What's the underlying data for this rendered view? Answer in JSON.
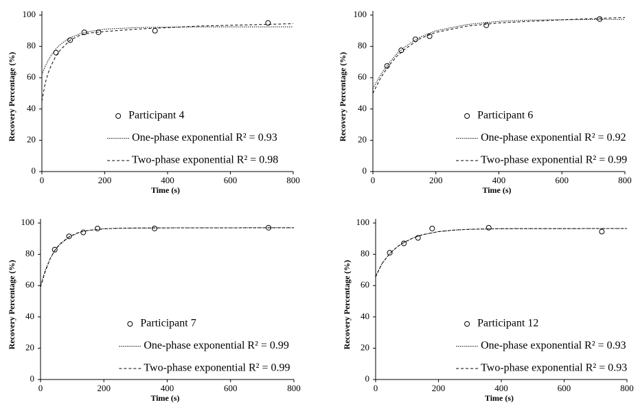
{
  "chart_data": [
    {
      "type": "line",
      "xlabel": "Time (s)",
      "ylabel": "Recovery Percentage (%)",
      "xlim": [
        0,
        800
      ],
      "ylim": [
        0,
        100
      ],
      "xticks": [
        0,
        200,
        400,
        600,
        800
      ],
      "yticks": [
        0,
        20,
        40,
        60,
        80,
        100
      ],
      "legend": "lower center",
      "series": [
        {
          "name": "Participant 4",
          "marker": "circle",
          "color": "#000000",
          "x": [
            45,
            90,
            135,
            180,
            360,
            720
          ],
          "values": [
            76,
            84,
            89,
            89,
            90,
            95
          ]
        },
        {
          "name": "One-phase exponential R² = 0.93",
          "dash": "dotted",
          "color": "#000000",
          "x": [
            0,
            10,
            20,
            30,
            45,
            60,
            90,
            120,
            150,
            200,
            300,
            400,
            500,
            600,
            700,
            800
          ],
          "values": [
            62,
            67,
            71,
            74.5,
            78.5,
            81.5,
            85.5,
            88,
            89.5,
            91,
            92,
            92.3,
            92.5,
            92.5,
            92.5,
            92.5
          ]
        },
        {
          "name": "Two-phase exponential R² = 0.98",
          "dash": "dashed",
          "color": "#000000",
          "x": [
            0,
            10,
            20,
            30,
            45,
            60,
            90,
            120,
            150,
            200,
            300,
            400,
            500,
            600,
            700,
            800
          ],
          "values": [
            45,
            56,
            63,
            68,
            74,
            78,
            84,
            87,
            88.5,
            89.5,
            91,
            92,
            93,
            93.5,
            94,
            94.5
          ]
        }
      ]
    },
    {
      "type": "line",
      "xlabel": "Time (s)",
      "ylabel": "Recovery Percentage (%)",
      "xlim": [
        0,
        800
      ],
      "ylim": [
        0,
        100
      ],
      "xticks": [
        0,
        200,
        400,
        600,
        800
      ],
      "yticks": [
        0,
        20,
        40,
        60,
        80,
        100
      ],
      "legend": "lower center",
      "series": [
        {
          "name": "Participant 6",
          "marker": "circle",
          "color": "#000000",
          "x": [
            45,
            90,
            135,
            180,
            360,
            720
          ],
          "values": [
            67.5,
            77.5,
            84.5,
            86.5,
            93.5,
            97.5
          ]
        },
        {
          "name": "One-phase exponential R² = 0.92",
          "dash": "dotted",
          "color": "#000000",
          "x": [
            0,
            25,
            50,
            75,
            100,
            150,
            200,
            300,
            400,
            500,
            600,
            700,
            800
          ],
          "values": [
            53,
            62,
            69,
            75,
            79.5,
            86,
            90,
            94,
            96,
            96.8,
            97,
            97.2,
            97.3
          ]
        },
        {
          "name": "Two-phase exponential R² = 0.99",
          "dash": "dashed",
          "color": "#000000",
          "x": [
            0,
            25,
            50,
            75,
            100,
            150,
            200,
            300,
            400,
            500,
            600,
            700,
            800
          ],
          "values": [
            50,
            60,
            67.5,
            73.5,
            78,
            85,
            89,
            93,
            95,
            96,
            97,
            97.8,
            98.5
          ]
        }
      ]
    },
    {
      "type": "line",
      "xlabel": "Time (s)",
      "ylabel": "Recovery Percentage (%)",
      "xlim": [
        0,
        800
      ],
      "ylim": [
        0,
        100
      ],
      "xticks": [
        0,
        200,
        400,
        600,
        800
      ],
      "yticks": [
        0,
        20,
        40,
        60,
        80,
        100
      ],
      "legend": "lower center",
      "series": [
        {
          "name": "Participant 7",
          "marker": "circle",
          "color": "#000000",
          "x": [
            45,
            90,
            135,
            180,
            360,
            720
          ],
          "values": [
            83,
            91.5,
            94,
            96.5,
            96.5,
            97
          ]
        },
        {
          "name": "One-phase exponential R² = 0.99",
          "dash": "dotted",
          "color": "#000000",
          "x": [
            0,
            15,
            30,
            45,
            60,
            90,
            120,
            150,
            200,
            250,
            300,
            400,
            800
          ],
          "values": [
            60,
            70,
            77,
            82.5,
            86,
            91,
            93.8,
            95.2,
            96.3,
            96.7,
            96.8,
            96.9,
            97
          ]
        },
        {
          "name": "Two-phase exponential R² = 0.99",
          "dash": "dashed",
          "color": "#000000",
          "x": [
            0,
            15,
            30,
            45,
            60,
            90,
            120,
            150,
            200,
            250,
            300,
            400,
            800
          ],
          "values": [
            59,
            69,
            77,
            82.5,
            86.5,
            91.2,
            94,
            95.3,
            96.3,
            96.7,
            96.8,
            96.9,
            97
          ]
        }
      ]
    },
    {
      "type": "line",
      "xlabel": "Time (s)",
      "ylabel": "Recovery Percentage (%)",
      "xlim": [
        0,
        800
      ],
      "ylim": [
        0,
        100
      ],
      "xticks": [
        0,
        200,
        400,
        600,
        800
      ],
      "yticks": [
        0,
        20,
        40,
        60,
        80,
        100
      ],
      "legend": "lower center",
      "series": [
        {
          "name": "Participant 12",
          "marker": "circle",
          "color": "#000000",
          "x": [
            45,
            90,
            135,
            180,
            360,
            720
          ],
          "values": [
            81,
            87,
            90.5,
            96.5,
            97,
            94.5
          ]
        },
        {
          "name": "One-phase exponential R² = 0.93",
          "dash": "dotted",
          "color": "#000000",
          "x": [
            0,
            20,
            45,
            70,
            90,
            120,
            150,
            200,
            250,
            300,
            400,
            800
          ],
          "values": [
            66,
            74,
            80.5,
            85,
            87.5,
            90.5,
            92.5,
            94.5,
            95.5,
            96,
            96.4,
            96.5
          ]
        },
        {
          "name": "Two-phase exponential R² = 0.93",
          "dash": "dashed",
          "color": "#000000",
          "x": [
            0,
            20,
            45,
            70,
            90,
            120,
            150,
            200,
            250,
            300,
            400,
            800
          ],
          "values": [
            65.5,
            74,
            80.5,
            85,
            87.6,
            90.6,
            92.6,
            94.5,
            95.5,
            96,
            96.4,
            96.5
          ]
        }
      ]
    }
  ]
}
